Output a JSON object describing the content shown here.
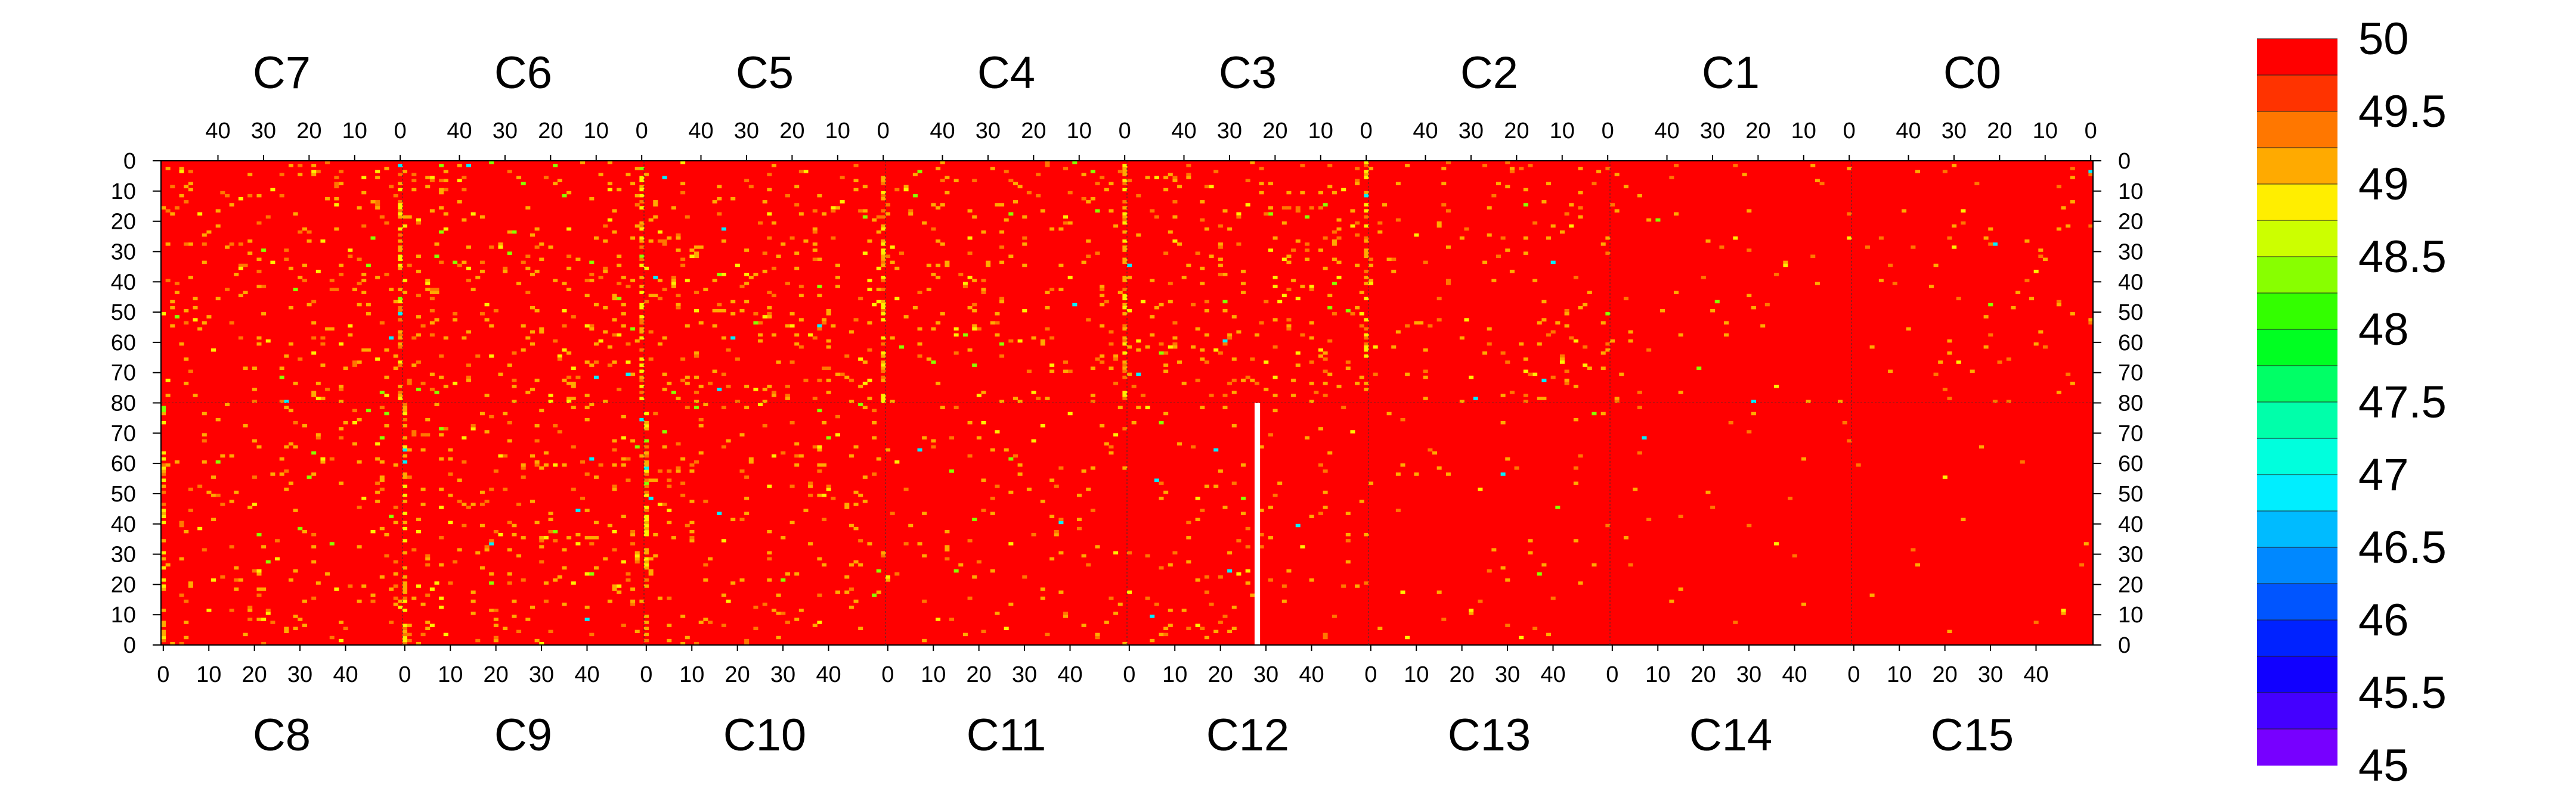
{
  "chart_data": {
    "type": "heatmap",
    "title": "",
    "xlabel": "",
    "ylabel": "",
    "top_chip_labels": [
      "C7",
      "C6",
      "C5",
      "C4",
      "C3",
      "C2",
      "C1",
      "C0"
    ],
    "bottom_chip_labels": [
      "C8",
      "C9",
      "C10",
      "C11",
      "C12",
      "C13",
      "C14",
      "C15"
    ],
    "top_x_tick_labels": [
      "40",
      "30",
      "20",
      "10",
      "0"
    ],
    "bottom_x_tick_labels": [
      "0",
      "10",
      "20",
      "30",
      "40"
    ],
    "y_tick_labels": [
      "0",
      "10",
      "20",
      "30",
      "40",
      "50",
      "60",
      "70",
      "80",
      "70",
      "60",
      "50",
      "40",
      "30",
      "20",
      "10",
      "0"
    ],
    "columns_per_chip": 53,
    "rows_per_half": 80,
    "zlim": [
      45,
      50
    ],
    "colorbar": {
      "tick_labels": [
        "50",
        "49.5",
        "49",
        "48.5",
        "48",
        "47.5",
        "47",
        "46.5",
        "46",
        "45.5",
        "45"
      ],
      "colors": [
        "#ff0000",
        "#ff3300",
        "#ff7700",
        "#ffaa00",
        "#ffee00",
        "#ccff00",
        "#88ff00",
        "#33ff00",
        "#00ff22",
        "#00ff66",
        "#00ffaa",
        "#00ffdd",
        "#00eeff",
        "#00bbff",
        "#0088ff",
        "#0055ff",
        "#0022ff",
        "#1100ff",
        "#4400ff",
        "#7700ff"
      ]
    },
    "summary": {
      "dominant_value": 50,
      "typical_outlier_value": 49.5,
      "dense_outlier_columns": [
        "C7 col 0",
        "C6 col 0",
        "C5 col 0",
        "C4 col 0",
        "C3 col 0",
        "C8 col 0",
        "C9 col 0",
        "C10 col 0"
      ],
      "quiet_chips": [
        "C1",
        "C0",
        "C13",
        "C14",
        "C15"
      ],
      "masked_column": {
        "chip": "C12",
        "column": 28,
        "value": null
      }
    }
  }
}
